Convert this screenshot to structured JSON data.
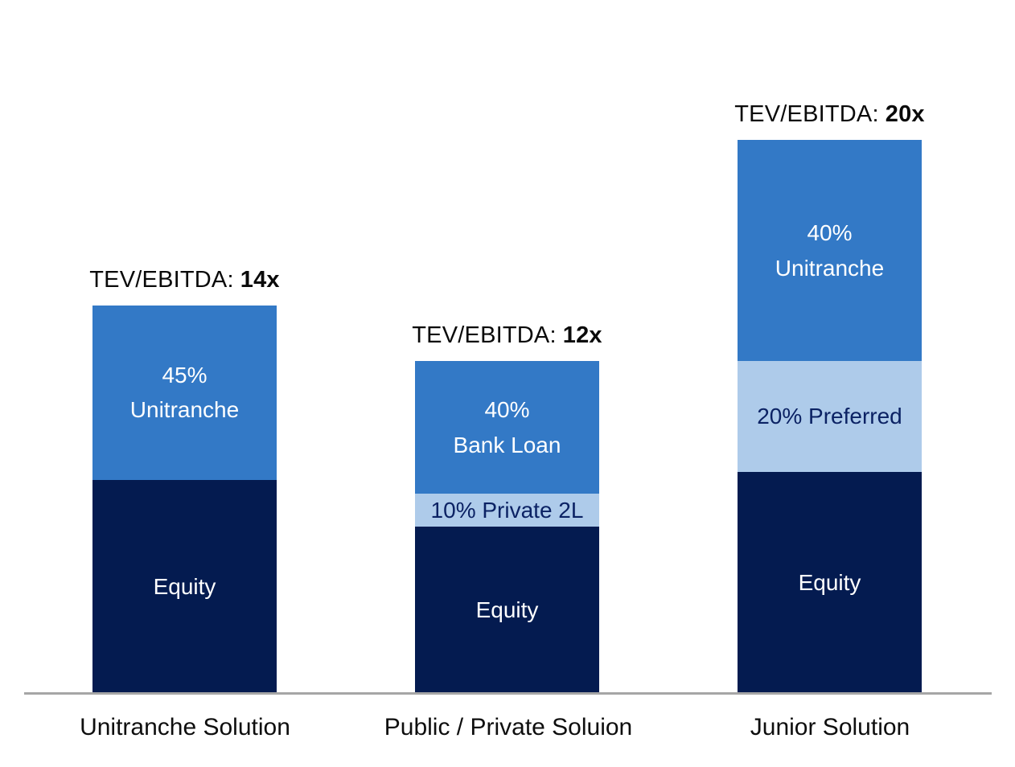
{
  "chart_data": {
    "type": "bar",
    "subtype": "stacked-proportional-capital-structure",
    "title": "",
    "categories": [
      "Unitranche Solution",
      "Public / Private Soluion",
      "Junior Solution"
    ],
    "colors": {
      "navy": "#041B50",
      "medium_blue": "#3379C6",
      "light_blue": "#AECBEA",
      "axis_line": "#A6A6A6",
      "label_text": "#0A0A0A"
    },
    "ylim_multiple": [
      0,
      20
    ],
    "grid": false,
    "legend": "none",
    "bars": [
      {
        "category": "Unitranche Solution",
        "tev_label_prefix": "TEV/EBITDA:",
        "tev_multiple_label": "14x",
        "tev_multiple": 14,
        "segments": [
          {
            "name": "equity",
            "fraction": 0.55,
            "lines": [
              "Equity"
            ]
          },
          {
            "name": "unitranche",
            "fraction": 0.45,
            "lines": [
              "45%",
              "Unitranche"
            ]
          }
        ]
      },
      {
        "category": "Public / Private Soluion",
        "tev_label_prefix": "TEV/EBITDA:",
        "tev_multiple_label": "12x",
        "tev_multiple": 12,
        "segments": [
          {
            "name": "equity",
            "fraction": 0.5,
            "lines": [
              "Equity"
            ]
          },
          {
            "name": "private-2l",
            "fraction": 0.1,
            "lines": [
              "10% Private 2L"
            ]
          },
          {
            "name": "bank-loan",
            "fraction": 0.4,
            "lines": [
              "40%",
              "Bank Loan"
            ]
          }
        ]
      },
      {
        "category": "Junior Solution",
        "tev_label_prefix": "TEV/EBITDA:",
        "tev_multiple_label": "20x",
        "tev_multiple": 20,
        "segments": [
          {
            "name": "equity",
            "fraction": 0.4,
            "lines": [
              "Equity"
            ]
          },
          {
            "name": "preferred",
            "fraction": 0.2,
            "lines": [
              "20% Preferred"
            ]
          },
          {
            "name": "unitranche",
            "fraction": 0.4,
            "lines": [
              "40%",
              "Unitranche"
            ]
          }
        ]
      }
    ]
  }
}
